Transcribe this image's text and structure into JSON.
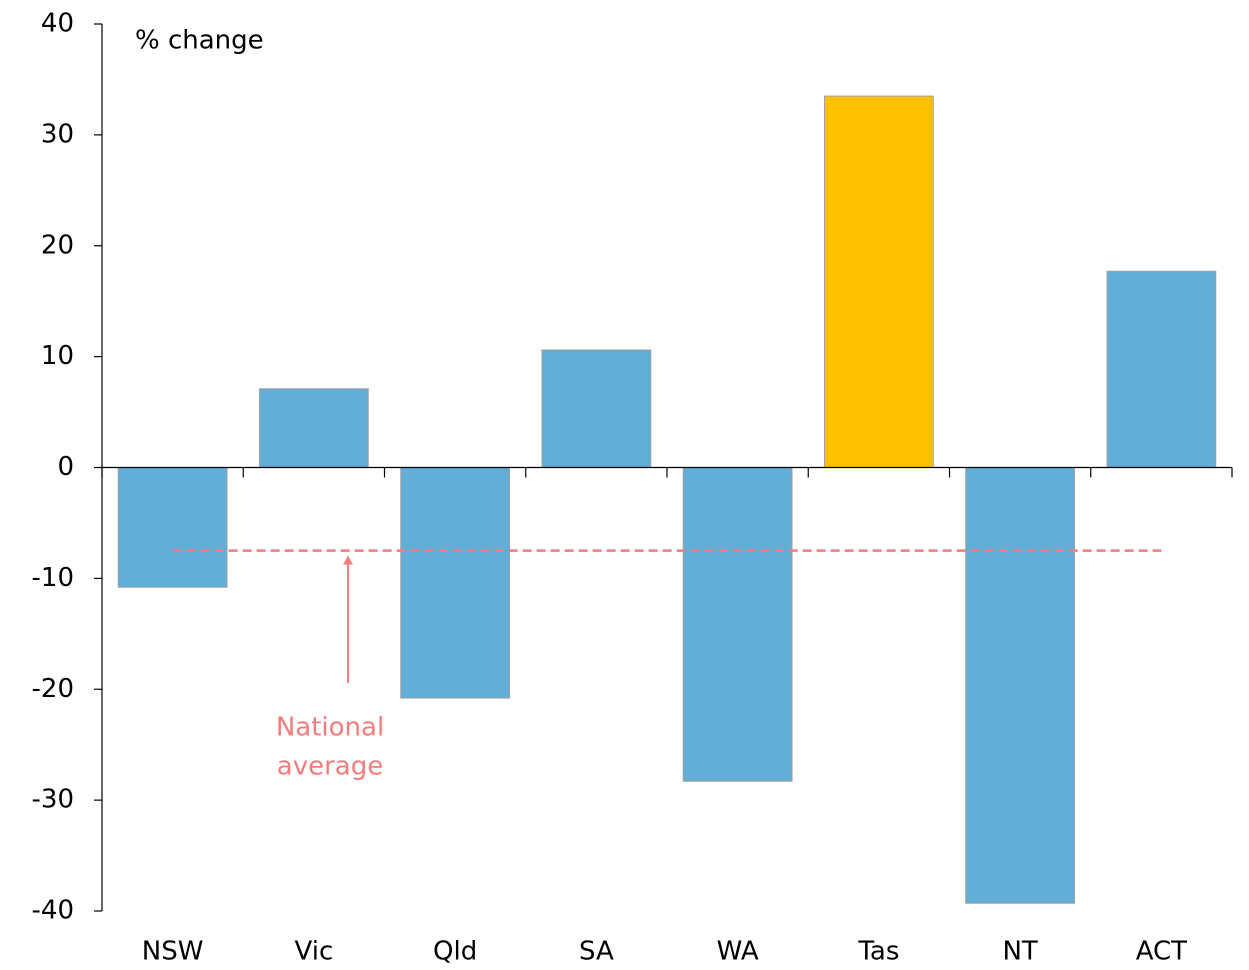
{
  "chart_data": {
    "type": "bar",
    "y_label": "% change",
    "categories": [
      "NSW",
      "Vic",
      "Qld",
      "SA",
      "WA",
      "Tas",
      "NT",
      "ACT"
    ],
    "values": [
      -10.8,
      7.1,
      -20.8,
      10.6,
      -28.3,
      33.5,
      -39.3,
      17.7
    ],
    "colors": [
      "#62aed6",
      "#62aed6",
      "#62aed6",
      "#62aed6",
      "#62aed6",
      "#ffc000",
      "#62aed6",
      "#62aed6"
    ],
    "ylim": [
      -40,
      40
    ],
    "yticks": [
      -40,
      -30,
      -20,
      -10,
      0,
      10,
      20,
      30,
      40
    ],
    "reference_line": {
      "value": -7.5,
      "label": [
        "National",
        "average"
      ],
      "color": "#f47c7c"
    }
  }
}
